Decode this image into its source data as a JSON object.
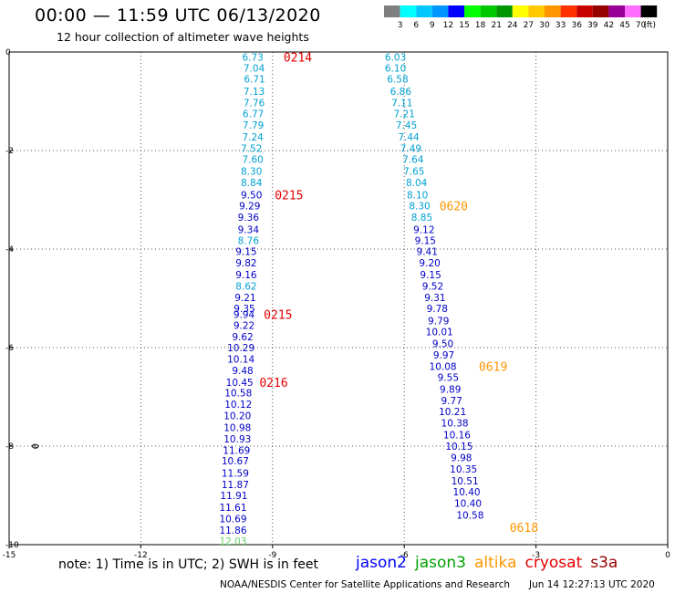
{
  "header": {
    "title": "00:00 — 11:59 UTC 06/13/2020",
    "subtitle": "12 hour collection of altimeter wave heights"
  },
  "colorbar": {
    "labels": [
      "3",
      "6",
      "9",
      "12",
      "15",
      "18",
      "21",
      "24",
      "27",
      "30",
      "33",
      "36",
      "39",
      "42",
      "45",
      "70",
      "(ft)"
    ],
    "colors": [
      "#7f7f7f",
      "#00ffff",
      "#00c8ff",
      "#0096ff",
      "#0000ff",
      "#00ff00",
      "#00c800",
      "#009600",
      "#ffff00",
      "#ffc800",
      "#ff9600",
      "#ff3200",
      "#c80000",
      "#960000",
      "#960096",
      "#ff6eff",
      "#000000"
    ]
  },
  "map": {
    "x_ticks": [
      "-15",
      "-12",
      "-9",
      "-6",
      "-3",
      "0"
    ],
    "y_ticks": [
      "0",
      "-2",
      "-4",
      "-6",
      "-8",
      "-10"
    ],
    "x_range": [
      -15,
      0
    ],
    "y_range": [
      -10,
      0
    ],
    "grid": "dotted"
  },
  "tracks": [
    {
      "satellite": "jason3",
      "points": [
        {
          "lon": -9.45,
          "lat": -0.1,
          "v": "6.73",
          "c": "#00a0d2"
        },
        {
          "lon": -9.42,
          "lat": -0.32,
          "v": "7.04",
          "c": "#00a0d2"
        },
        {
          "lon": -9.41,
          "lat": -0.55,
          "v": "6.71",
          "c": "#00a0d2"
        },
        {
          "lon": -9.42,
          "lat": -0.8,
          "v": "7.13",
          "c": "#00a0d2"
        },
        {
          "lon": -9.42,
          "lat": -1.03,
          "v": "7.76",
          "c": "#00a0d2"
        },
        {
          "lon": -9.44,
          "lat": -1.25,
          "v": "6.77",
          "c": "#00a0d2"
        },
        {
          "lon": -9.44,
          "lat": -1.48,
          "v": "7.79",
          "c": "#00a0d2"
        },
        {
          "lon": -9.45,
          "lat": -1.72,
          "v": "7.24",
          "c": "#00a0d2"
        },
        {
          "lon": -9.48,
          "lat": -1.95,
          "v": "7.52",
          "c": "#00a0d2"
        },
        {
          "lon": -9.45,
          "lat": -2.18,
          "v": "7.60",
          "c": "#00a0d2"
        },
        {
          "lon": -9.48,
          "lat": -2.42,
          "v": "8.30",
          "c": "#00a0d2"
        },
        {
          "lon": -9.48,
          "lat": -2.65,
          "v": "8.84",
          "c": "#00a0d2"
        },
        {
          "lon": -9.48,
          "lat": -2.9,
          "v": "9.50",
          "c": "#0000c8"
        },
        {
          "lon": -9.52,
          "lat": -3.12,
          "v": "9.29",
          "c": "#0000c8"
        },
        {
          "lon": -9.55,
          "lat": -3.35,
          "v": "9.36",
          "c": "#0000c8"
        },
        {
          "lon": -9.55,
          "lat": -3.6,
          "v": "9.34",
          "c": "#0000c8"
        },
        {
          "lon": -9.55,
          "lat": -3.82,
          "v": "8.76",
          "c": "#00a0d2"
        },
        {
          "lon": -9.6,
          "lat": -4.05,
          "v": "9.15",
          "c": "#0000c8"
        },
        {
          "lon": -9.6,
          "lat": -4.28,
          "v": "9.82",
          "c": "#0000c8"
        },
        {
          "lon": -9.6,
          "lat": -4.52,
          "v": "9.16",
          "c": "#0000c8"
        },
        {
          "lon": -9.6,
          "lat": -4.75,
          "v": "8.62",
          "c": "#00a0d2"
        },
        {
          "lon": -9.62,
          "lat": -4.98,
          "v": "9.21",
          "c": "#0000c8"
        },
        {
          "lon": -9.64,
          "lat": -5.2,
          "v": "9.35",
          "c": "#0000c8"
        },
        {
          "lon": -9.65,
          "lat": -5.32,
          "v": "9.94",
          "c": "#0000c8"
        },
        {
          "lon": -9.65,
          "lat": -5.55,
          "v": "9.22",
          "c": "#0000c8"
        },
        {
          "lon": -9.68,
          "lat": -5.78,
          "v": "9.62",
          "c": "#0000c8"
        },
        {
          "lon": -9.72,
          "lat": -6.0,
          "v": "10.29",
          "c": "#0000c8"
        },
        {
          "lon": -9.72,
          "lat": -6.23,
          "v": "10.14",
          "c": "#0000c8"
        },
        {
          "lon": -9.68,
          "lat": -6.46,
          "v": "9.48",
          "c": "#0000c8"
        },
        {
          "lon": -9.75,
          "lat": -6.7,
          "v": "10.45",
          "c": "#0000c8"
        },
        {
          "lon": -9.78,
          "lat": -6.92,
          "v": "10.58",
          "c": "#0000c8"
        },
        {
          "lon": -9.78,
          "lat": -7.15,
          "v": "10.12",
          "c": "#0000c8"
        },
        {
          "lon": -9.8,
          "lat": -7.38,
          "v": "10.20",
          "c": "#0000c8"
        },
        {
          "lon": -9.8,
          "lat": -7.62,
          "v": "10.98",
          "c": "#0000c8"
        },
        {
          "lon": -9.8,
          "lat": -7.85,
          "v": "10.93",
          "c": "#0000c8"
        },
        {
          "lon": -9.82,
          "lat": -8.08,
          "v": "11.69",
          "c": "#0000c8"
        },
        {
          "lon": -9.85,
          "lat": -8.3,
          "v": "10.67",
          "c": "#0000c8"
        },
        {
          "lon": -9.85,
          "lat": -8.55,
          "v": "11.59",
          "c": "#0000c8"
        },
        {
          "lon": -9.85,
          "lat": -8.78,
          "v": "11.87",
          "c": "#0000c8"
        },
        {
          "lon": -9.88,
          "lat": -9.0,
          "v": "11.91",
          "c": "#0000c8"
        },
        {
          "lon": -9.9,
          "lat": -9.24,
          "v": "11.61",
          "c": "#0000c8"
        },
        {
          "lon": -9.9,
          "lat": -9.47,
          "v": "10.69",
          "c": "#0000c8"
        },
        {
          "lon": -9.9,
          "lat": -9.7,
          "v": "11.86",
          "c": "#0000c8"
        },
        {
          "lon": -9.9,
          "lat": -9.93,
          "v": "12.03",
          "c": "#64d264"
        }
      ]
    },
    {
      "satellite": "jason3",
      "points": [
        {
          "lon": -6.2,
          "lat": -0.1,
          "v": "6.03",
          "c": "#00a0d2"
        },
        {
          "lon": -6.2,
          "lat": -0.32,
          "v": "6.10",
          "c": "#00a0d2"
        },
        {
          "lon": -6.15,
          "lat": -0.55,
          "v": "6.58",
          "c": "#00a0d2"
        },
        {
          "lon": -6.08,
          "lat": -0.8,
          "v": "6.86",
          "c": "#00a0d2"
        },
        {
          "lon": -6.05,
          "lat": -1.03,
          "v": "7.11",
          "c": "#00a0d2"
        },
        {
          "lon": -6.0,
          "lat": -1.25,
          "v": "7.21",
          "c": "#00a0d2"
        },
        {
          "lon": -5.95,
          "lat": -1.48,
          "v": "7.45",
          "c": "#00a0d2"
        },
        {
          "lon": -5.9,
          "lat": -1.72,
          "v": "7.44",
          "c": "#00a0d2"
        },
        {
          "lon": -5.85,
          "lat": -1.95,
          "v": "7.49",
          "c": "#00a0d2"
        },
        {
          "lon": -5.8,
          "lat": -2.18,
          "v": "7.64",
          "c": "#00a0d2"
        },
        {
          "lon": -5.78,
          "lat": -2.42,
          "v": "7.65",
          "c": "#00a0d2"
        },
        {
          "lon": -5.72,
          "lat": -2.65,
          "v": "8.04",
          "c": "#00a0d2"
        },
        {
          "lon": -5.7,
          "lat": -2.9,
          "v": "8.10",
          "c": "#00a0d2"
        },
        {
          "lon": -5.65,
          "lat": -3.12,
          "v": "8.30",
          "c": "#00a0d2"
        },
        {
          "lon": -5.6,
          "lat": -3.35,
          "v": "8.85",
          "c": "#00a0d2"
        },
        {
          "lon": -5.55,
          "lat": -3.6,
          "v": "9.12",
          "c": "#0000c8"
        },
        {
          "lon": -5.52,
          "lat": -3.82,
          "v": "9.15",
          "c": "#0000c8"
        },
        {
          "lon": -5.48,
          "lat": -4.05,
          "v": "9.41",
          "c": "#0000c8"
        },
        {
          "lon": -5.42,
          "lat": -4.28,
          "v": "9.20",
          "c": "#0000c8"
        },
        {
          "lon": -5.4,
          "lat": -4.52,
          "v": "9.15",
          "c": "#0000c8"
        },
        {
          "lon": -5.35,
          "lat": -4.75,
          "v": "9.52",
          "c": "#0000c8"
        },
        {
          "lon": -5.3,
          "lat": -4.98,
          "v": "9.31",
          "c": "#0000c8"
        },
        {
          "lon": -5.25,
          "lat": -5.2,
          "v": "9.78",
          "c": "#0000c8"
        },
        {
          "lon": -5.22,
          "lat": -5.45,
          "v": "9.79",
          "c": "#0000c8"
        },
        {
          "lon": -5.2,
          "lat": -5.68,
          "v": "10.01",
          "c": "#0000c8"
        },
        {
          "lon": -5.12,
          "lat": -5.92,
          "v": "9.50",
          "c": "#0000c8"
        },
        {
          "lon": -5.1,
          "lat": -6.15,
          "v": "9.97",
          "c": "#0000c8"
        },
        {
          "lon": -5.12,
          "lat": -6.38,
          "v": "10.08",
          "c": "#0000c8"
        },
        {
          "lon": -5.0,
          "lat": -6.6,
          "v": "9.55",
          "c": "#0000c8"
        },
        {
          "lon": -4.95,
          "lat": -6.84,
          "v": "9.89",
          "c": "#0000c8"
        },
        {
          "lon": -4.92,
          "lat": -7.07,
          "v": "9.77",
          "c": "#0000c8"
        },
        {
          "lon": -4.9,
          "lat": -7.3,
          "v": "10.21",
          "c": "#0000c8"
        },
        {
          "lon": -4.85,
          "lat": -7.53,
          "v": "10.38",
          "c": "#0000c8"
        },
        {
          "lon": -4.8,
          "lat": -7.77,
          "v": "10.16",
          "c": "#0000c8"
        },
        {
          "lon": -4.75,
          "lat": -8.0,
          "v": "10.15",
          "c": "#0000c8"
        },
        {
          "lon": -4.7,
          "lat": -8.23,
          "v": "9.98",
          "c": "#0000c8"
        },
        {
          "lon": -4.65,
          "lat": -8.46,
          "v": "10.35",
          "c": "#0000c8"
        },
        {
          "lon": -4.62,
          "lat": -8.7,
          "v": "10.51",
          "c": "#0000c8"
        },
        {
          "lon": -4.58,
          "lat": -8.93,
          "v": "10.40",
          "c": "#0000c8"
        },
        {
          "lon": -4.55,
          "lat": -9.16,
          "v": "10.40",
          "c": "#0000c8"
        },
        {
          "lon": -4.5,
          "lat": -9.4,
          "v": "10.58",
          "c": "#0000c8"
        }
      ]
    }
  ],
  "time_labels": [
    {
      "text": "0214",
      "lon": -8.75,
      "lat": -0.1,
      "c": "#e60000"
    },
    {
      "text": "0215",
      "lon": -8.95,
      "lat": -2.9,
      "c": "#e60000"
    },
    {
      "text": "0215",
      "lon": -9.2,
      "lat": -5.32,
      "c": "#e60000"
    },
    {
      "text": "0216",
      "lon": -9.3,
      "lat": -6.7,
      "c": "#e60000"
    },
    {
      "text": "0620",
      "lon": -5.2,
      "lat": -3.12,
      "c": "#ff9600"
    },
    {
      "text": "0619",
      "lon": -4.3,
      "lat": -6.38,
      "c": "#ff9600"
    },
    {
      "text": "0618",
      "lon": -3.6,
      "lat": -9.65,
      "c": "#ff9600"
    }
  ],
  "footer": {
    "note": "note: 1) Time is in UTC; 2) SWH is in feet",
    "satellites": [
      {
        "name": "jason2",
        "color": "#0000ff"
      },
      {
        "name": "jason3",
        "color": "#00a000"
      },
      {
        "name": "altika",
        "color": "#ff9600"
      },
      {
        "name": "cryosat",
        "color": "#e60000"
      },
      {
        "name": "s3a",
        "color": "#960000"
      }
    ],
    "credit": "NOAA/NESDIS Center for Satellite Applications and Research",
    "timestamp": "Jun 14 12:27:13 UTC 2020"
  }
}
